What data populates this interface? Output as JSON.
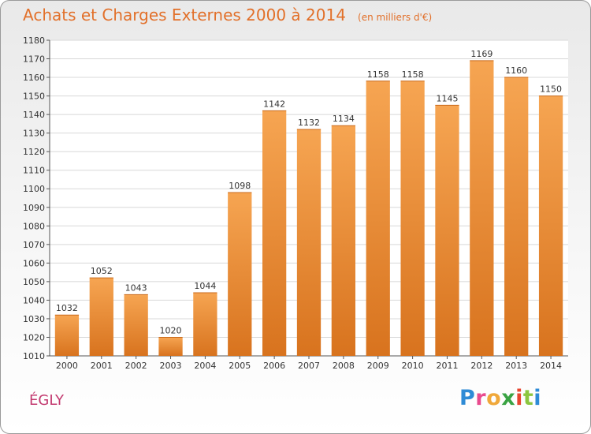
{
  "header": {
    "title": "Achats et Charges Externes 2000 à 2014",
    "unit": "(en milliers d'€)"
  },
  "footer": {
    "commune": "ÉGLY"
  },
  "logo": {
    "text": "Proxiti",
    "letter_colors": [
      "#2e8bd6",
      "#e94a8e",
      "#f0a83a",
      "#3aa343",
      "#e8452f",
      "#8cc63f",
      "#2e8bd6"
    ]
  },
  "colors": {
    "bar_top": "#f6a552",
    "bar_bottom": "#d8731e",
    "title": "#e2702a",
    "commune": "#c2386e"
  },
  "chart_data": {
    "type": "bar",
    "title": "Achats et Charges Externes 2000 à 2014",
    "subtitle": "(en milliers d'€)",
    "categories": [
      "2000",
      "2001",
      "2002",
      "2003",
      "2004",
      "2005",
      "2006",
      "2007",
      "2008",
      "2009",
      "2010",
      "2011",
      "2012",
      "2013",
      "2014"
    ],
    "values": [
      1032,
      1052,
      1043,
      1020,
      1044,
      1098,
      1142,
      1132,
      1134,
      1158,
      1158,
      1145,
      1169,
      1160,
      1150
    ],
    "ylim": [
      1010,
      1180
    ],
    "yticks": [
      1010,
      1020,
      1030,
      1040,
      1050,
      1060,
      1070,
      1080,
      1090,
      1100,
      1110,
      1120,
      1130,
      1140,
      1150,
      1160,
      1170,
      1180
    ],
    "grid": true,
    "xlabel": "",
    "ylabel": ""
  }
}
